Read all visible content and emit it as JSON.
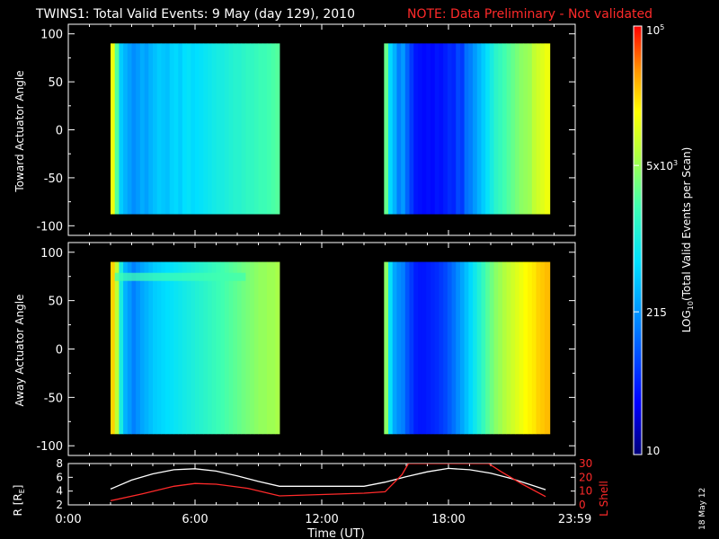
{
  "header": {
    "title": "TWINS1: Total Valid Events:  9 May (day 129), 2010",
    "note": "NOTE: Data Preliminary - Not validated"
  },
  "stamp": "18 May 12",
  "colors": {
    "background": "#000000",
    "axes": "#ffffff",
    "note": "#ff2a2a",
    "orbit_r": "#ffffff",
    "orbit_lshell": "#ff2a2a"
  },
  "chart_data": [
    {
      "type": "heatmap",
      "panel": "toward",
      "ylabel": "Toward Actuator Angle",
      "ylim": [
        -110,
        110
      ],
      "yticks": [
        100,
        50,
        0,
        -50,
        -100
      ],
      "xlim": [
        0,
        24
      ],
      "coverage": [
        {
          "start": 2.0,
          "end": 10.0,
          "y_range": [
            -88,
            90
          ]
        },
        {
          "start": 14.95,
          "end": 22.8,
          "y_range": [
            -88,
            90
          ]
        }
      ],
      "column_levels": [
        {
          "x": [
            2.0,
            2.2,
            2.4,
            2.6,
            2.8,
            3.0,
            3.2,
            3.4,
            3.6,
            3.8,
            4.0,
            4.2,
            4.4,
            4.6,
            4.8,
            5.0,
            5.2,
            5.4,
            5.6,
            5.8,
            6.0,
            6.2,
            6.4,
            6.6,
            6.8,
            7.0,
            7.2,
            7.4,
            7.6,
            7.8,
            8.0,
            8.2,
            8.4,
            8.6,
            8.8,
            9.0,
            9.2,
            9.4,
            9.6,
            9.8
          ],
          "level": [
            0.78,
            0.6,
            0.42,
            0.38,
            0.35,
            0.32,
            0.34,
            0.37,
            0.35,
            0.38,
            0.4,
            0.42,
            0.41,
            0.4,
            0.43,
            0.44,
            0.42,
            0.45,
            0.46,
            0.44,
            0.45,
            0.46,
            0.47,
            0.48,
            0.49,
            0.5,
            0.5,
            0.51,
            0.52,
            0.53,
            0.53,
            0.54,
            0.55,
            0.55,
            0.56,
            0.57,
            0.57,
            0.58,
            0.59,
            0.6
          ]
        },
        {
          "x": [
            14.95,
            15.15,
            15.35,
            15.55,
            15.75,
            15.95,
            16.15,
            16.35,
            16.55,
            16.75,
            16.95,
            17.15,
            17.35,
            17.55,
            17.75,
            17.95,
            18.15,
            18.35,
            18.55,
            18.75,
            18.95,
            19.15,
            19.35,
            19.55,
            19.75,
            19.95,
            20.15,
            20.35,
            20.55,
            20.75,
            20.95,
            21.15,
            21.35,
            21.55,
            21.75,
            21.95,
            22.15,
            22.35,
            22.55
          ],
          "level": [
            0.62,
            0.44,
            0.38,
            0.3,
            0.34,
            0.26,
            0.2,
            0.15,
            0.14,
            0.13,
            0.14,
            0.13,
            0.15,
            0.14,
            0.16,
            0.18,
            0.17,
            0.22,
            0.2,
            0.28,
            0.3,
            0.34,
            0.38,
            0.42,
            0.46,
            0.5,
            0.54,
            0.56,
            0.58,
            0.6,
            0.62,
            0.64,
            0.66,
            0.67,
            0.68,
            0.72,
            0.74,
            0.76,
            0.78
          ]
        }
      ]
    },
    {
      "type": "heatmap",
      "panel": "away",
      "ylabel": "Away Actuator Angle",
      "ylim": [
        -110,
        110
      ],
      "yticks": [
        100,
        50,
        0,
        -50,
        -100
      ],
      "xlim": [
        0,
        24
      ],
      "coverage": [
        {
          "start": 2.0,
          "end": 10.0,
          "y_range": [
            -88,
            90
          ]
        },
        {
          "start": 14.95,
          "end": 22.8,
          "y_range": [
            -88,
            90
          ]
        }
      ],
      "column_levels": [
        {
          "x": [
            2.0,
            2.2,
            2.4,
            2.6,
            2.8,
            3.0,
            3.2,
            3.4,
            3.6,
            3.8,
            4.0,
            4.2,
            4.4,
            4.6,
            4.8,
            5.0,
            5.2,
            5.4,
            5.6,
            5.8,
            6.0,
            6.2,
            6.4,
            6.6,
            6.8,
            7.0,
            7.2,
            7.4,
            7.6,
            7.8,
            8.0,
            8.2,
            8.4,
            8.6,
            8.8,
            9.0,
            9.2,
            9.4,
            9.6,
            9.8
          ],
          "level": [
            0.84,
            0.72,
            0.5,
            0.38,
            0.34,
            0.3,
            0.33,
            0.36,
            0.38,
            0.4,
            0.42,
            0.43,
            0.44,
            0.45,
            0.46,
            0.47,
            0.48,
            0.49,
            0.5,
            0.51,
            0.52,
            0.53,
            0.54,
            0.55,
            0.56,
            0.57,
            0.58,
            0.59,
            0.6,
            0.61,
            0.62,
            0.63,
            0.64,
            0.65,
            0.66,
            0.67,
            0.67,
            0.68,
            0.68,
            0.69
          ]
        },
        {
          "x": [
            14.95,
            15.15,
            15.35,
            15.55,
            15.75,
            15.95,
            16.15,
            16.35,
            16.55,
            16.75,
            16.95,
            17.15,
            17.35,
            17.55,
            17.75,
            17.95,
            18.15,
            18.35,
            18.55,
            18.75,
            18.95,
            19.15,
            19.35,
            19.55,
            19.75,
            19.95,
            20.15,
            20.35,
            20.55,
            20.75,
            20.95,
            21.15,
            21.35,
            21.55,
            21.75,
            21.95,
            22.15,
            22.35,
            22.55
          ],
          "level": [
            0.66,
            0.46,
            0.36,
            0.32,
            0.3,
            0.24,
            0.2,
            0.16,
            0.15,
            0.15,
            0.16,
            0.17,
            0.18,
            0.2,
            0.22,
            0.25,
            0.28,
            0.32,
            0.36,
            0.4,
            0.44,
            0.48,
            0.52,
            0.56,
            0.6,
            0.63,
            0.66,
            0.68,
            0.7,
            0.72,
            0.74,
            0.76,
            0.78,
            0.8,
            0.81,
            0.82,
            0.84,
            0.85,
            0.86
          ]
        }
      ],
      "band": {
        "x": [
          2.2,
          8.4
        ],
        "y": 75,
        "level": 0.58
      }
    },
    {
      "type": "line",
      "panel": "orbit",
      "ylabel": "R [R_E]",
      "ylim": [
        2,
        8
      ],
      "yticks": [
        8,
        6,
        4,
        2
      ],
      "y2label": "L Shell",
      "y2lim": [
        0,
        30
      ],
      "y2ticks": [
        30,
        20,
        10,
        0
      ],
      "xlabel": "Time (UT)",
      "xlim": [
        0,
        24
      ],
      "xtick_labels": [
        "0:00",
        "6:00",
        "12:00",
        "18:00",
        "23:59"
      ],
      "xticks": [
        0,
        6,
        12,
        18,
        23.983
      ],
      "series": [
        {
          "x": [
            2.0,
            3.0,
            4.0,
            5.0,
            6.0,
            7.0,
            8.0,
            9.0,
            10.0,
            11.0,
            12.0,
            13.0,
            14.0,
            15.0,
            16.0,
            17.0,
            18.0,
            19.0,
            20.0,
            21.0,
            22.0,
            22.6
          ],
          "y": [
            4.3,
            5.6,
            6.5,
            7.1,
            7.25,
            6.9,
            6.2,
            5.4,
            4.7,
            4.7,
            4.7,
            4.7,
            4.7,
            5.3,
            6.1,
            6.8,
            7.3,
            7.1,
            6.6,
            5.8,
            4.8,
            4.2
          ],
          "axis": "left"
        },
        {
          "x": [
            2.0,
            3.5,
            5.0,
            6.0,
            7.0,
            8.5,
            10.0,
            12.0,
            14.0,
            15.0,
            15.8,
            16.1,
            19.9,
            20.5,
            21.5,
            22.6
          ],
          "y": [
            3.0,
            8.0,
            13.5,
            15.5,
            15.0,
            12.0,
            6.5,
            7.5,
            8.5,
            9.5,
            22.0,
            30.0,
            30.0,
            24.0,
            15.0,
            6.0
          ],
          "axis": "right"
        }
      ]
    }
  ],
  "colorbar": {
    "label_prefix": "LOG",
    "label_sub": "10",
    "label_suffix": "(Total Valid Events per Scan)",
    "tick_labels": [
      {
        "base": "10",
        "sup": "5",
        "value": 100000
      },
      {
        "base": "5x10",
        "sup": "3",
        "value": 5000
      },
      {
        "base": "215",
        "sup": "",
        "value": 215
      },
      {
        "base": "10",
        "sup": "",
        "value": 10
      }
    ],
    "range": [
      10,
      100000
    ]
  },
  "orbit_labels": {
    "r_prefix": "R [R",
    "r_sub": "E",
    "r_suffix": "]",
    "lshell": "L Shell"
  }
}
